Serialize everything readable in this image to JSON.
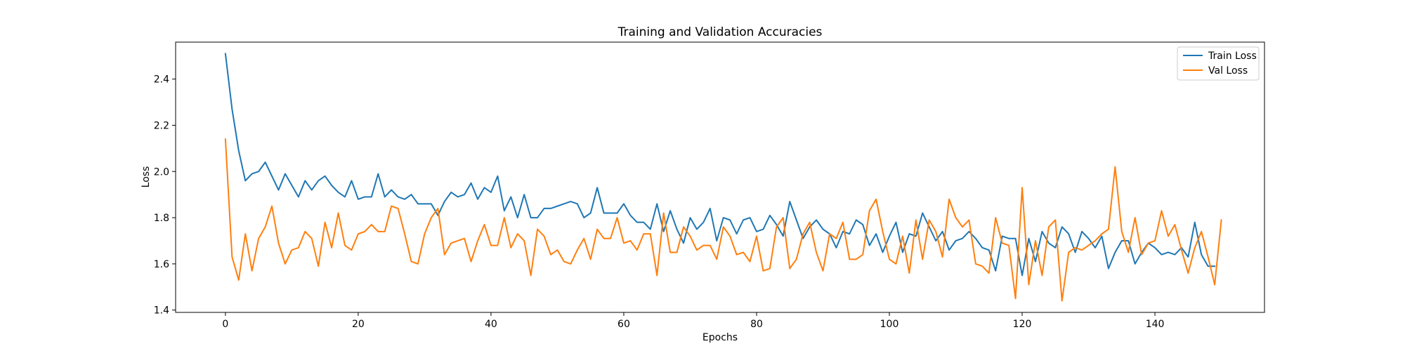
{
  "chart_data": {
    "type": "line",
    "title": "Training and Validation Accuracies",
    "xlabel": "Epochs",
    "ylabel": "Loss",
    "xlim": [
      -7.5,
      156.5
    ],
    "ylim": [
      1.39,
      2.56
    ],
    "xticks": [
      0,
      20,
      40,
      60,
      80,
      100,
      120,
      140
    ],
    "yticks": [
      1.4,
      1.6,
      1.8,
      2.0,
      2.2,
      2.4
    ],
    "grid": false,
    "legend_position": "top-right",
    "series": [
      {
        "name": "Train Loss",
        "color": "#1f77b4",
        "values": [
          2.51,
          2.27,
          2.09,
          1.96,
          1.99,
          2.0,
          2.04,
          1.98,
          1.92,
          1.99,
          1.94,
          1.89,
          1.96,
          1.92,
          1.96,
          1.98,
          1.94,
          1.91,
          1.89,
          1.96,
          1.88,
          1.89,
          1.89,
          1.99,
          1.89,
          1.92,
          1.89,
          1.88,
          1.9,
          1.86,
          1.86,
          1.86,
          1.81,
          1.87,
          1.91,
          1.89,
          1.9,
          1.95,
          1.88,
          1.93,
          1.91,
          1.98,
          1.83,
          1.89,
          1.8,
          1.9,
          1.8,
          1.8,
          1.84,
          1.84,
          1.85,
          1.86,
          1.87,
          1.86,
          1.8,
          1.82,
          1.93,
          1.82,
          1.82,
          1.82,
          1.86,
          1.81,
          1.78,
          1.78,
          1.75,
          1.86,
          1.74,
          1.83,
          1.75,
          1.69,
          1.8,
          1.75,
          1.78,
          1.84,
          1.7,
          1.8,
          1.79,
          1.73,
          1.79,
          1.8,
          1.74,
          1.75,
          1.81,
          1.77,
          1.72,
          1.87,
          1.79,
          1.71,
          1.76,
          1.79,
          1.75,
          1.73,
          1.67,
          1.74,
          1.73,
          1.79,
          1.77,
          1.68,
          1.73,
          1.65,
          1.72,
          1.78,
          1.65,
          1.73,
          1.72,
          1.82,
          1.76,
          1.7,
          1.74,
          1.66,
          1.7,
          1.71,
          1.74,
          1.71,
          1.67,
          1.66,
          1.57,
          1.72,
          1.71,
          1.71,
          1.55,
          1.71,
          1.61,
          1.74,
          1.69,
          1.67,
          1.76,
          1.73,
          1.65,
          1.74,
          1.71,
          1.67,
          1.72,
          1.58,
          1.65,
          1.7,
          1.7,
          1.6,
          1.65,
          1.69,
          1.67,
          1.64,
          1.65,
          1.64,
          1.67,
          1.63,
          1.78,
          1.64,
          1.59,
          1.59
        ]
      },
      {
        "name": "Val Loss",
        "color": "#ff7f0e",
        "values": [
          2.14,
          1.63,
          1.53,
          1.73,
          1.57,
          1.71,
          1.76,
          1.85,
          1.69,
          1.6,
          1.66,
          1.67,
          1.74,
          1.71,
          1.59,
          1.78,
          1.67,
          1.82,
          1.68,
          1.66,
          1.73,
          1.74,
          1.77,
          1.74,
          1.74,
          1.85,
          1.84,
          1.73,
          1.61,
          1.6,
          1.73,
          1.8,
          1.84,
          1.64,
          1.69,
          1.7,
          1.71,
          1.61,
          1.7,
          1.77,
          1.68,
          1.68,
          1.8,
          1.67,
          1.73,
          1.7,
          1.55,
          1.75,
          1.72,
          1.64,
          1.66,
          1.61,
          1.6,
          1.66,
          1.71,
          1.62,
          1.75,
          1.71,
          1.71,
          1.8,
          1.69,
          1.7,
          1.66,
          1.73,
          1.73,
          1.55,
          1.82,
          1.65,
          1.65,
          1.76,
          1.72,
          1.66,
          1.68,
          1.68,
          1.62,
          1.76,
          1.72,
          1.64,
          1.65,
          1.61,
          1.72,
          1.57,
          1.58,
          1.76,
          1.8,
          1.58,
          1.62,
          1.73,
          1.78,
          1.65,
          1.57,
          1.73,
          1.71,
          1.78,
          1.62,
          1.62,
          1.64,
          1.83,
          1.88,
          1.74,
          1.62,
          1.6,
          1.72,
          1.56,
          1.79,
          1.62,
          1.79,
          1.74,
          1.63,
          1.88,
          1.8,
          1.76,
          1.79,
          1.6,
          1.59,
          1.56,
          1.8,
          1.69,
          1.68,
          1.45,
          1.93,
          1.51,
          1.7,
          1.55,
          1.76,
          1.79,
          1.44,
          1.65,
          1.67,
          1.66,
          1.68,
          1.7,
          1.73,
          1.75,
          2.02,
          1.74,
          1.65,
          1.8,
          1.64,
          1.69,
          1.7,
          1.83,
          1.72,
          1.77,
          1.66,
          1.56,
          1.67,
          1.74,
          1.63,
          1.51,
          1.79
        ]
      }
    ]
  }
}
